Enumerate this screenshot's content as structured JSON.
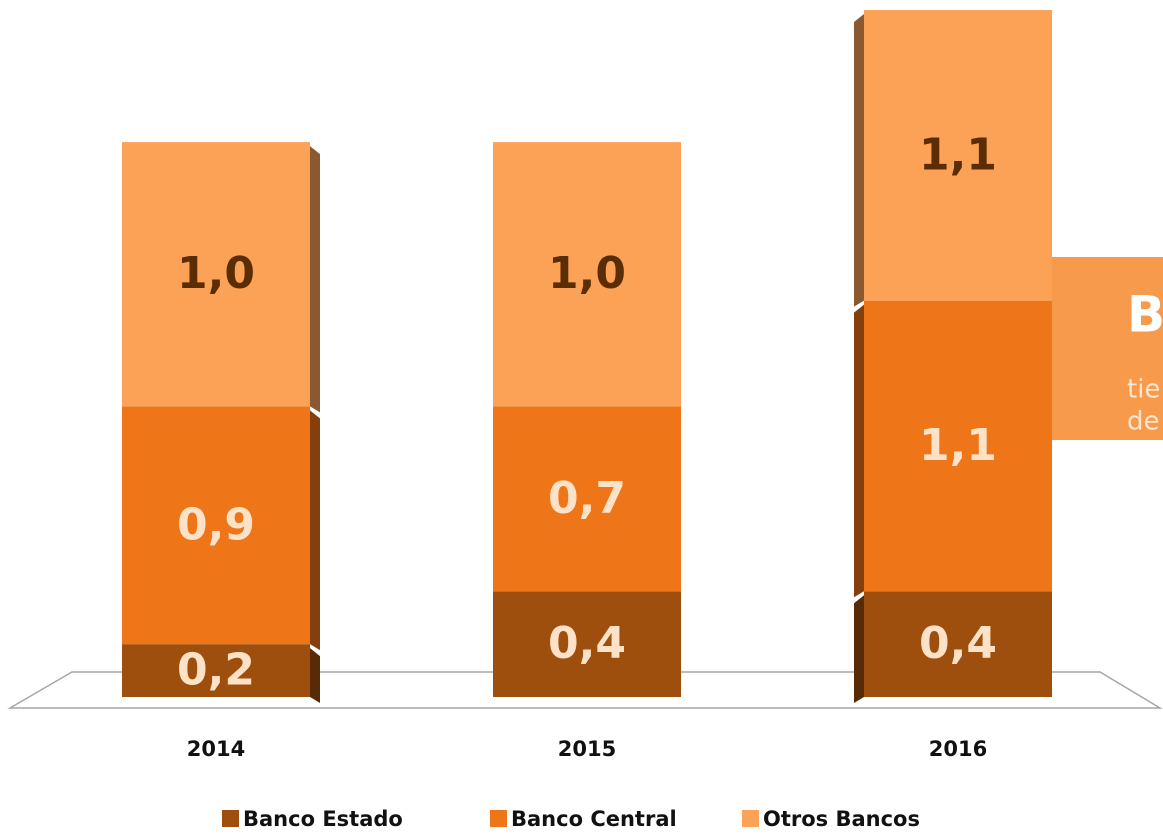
{
  "chart_data": {
    "type": "bar",
    "stacked": true,
    "categories": [
      "2014",
      "2015",
      "2016"
    ],
    "series": [
      {
        "name": "Banco Estado",
        "color": "#9e4f0e",
        "values": [
          0.2,
          0.4,
          0.4
        ],
        "value_labels": [
          "0,2",
          "0,4",
          "0,4"
        ]
      },
      {
        "name": "Banco Central",
        "color": "#ee7518",
        "values": [
          0.9,
          0.7,
          1.1
        ],
        "value_labels": [
          "0,9",
          "0,7",
          "1,1"
        ]
      },
      {
        "name": "Otros Bancos",
        "color": "#fba257",
        "values": [
          1.0,
          1.0,
          1.1
        ],
        "value_labels": [
          "1,0",
          "1,0",
          "1,1"
        ]
      }
    ],
    "ylim": [
      0,
      2.6
    ],
    "callout": {
      "title": "B",
      "lines": [
        "tie",
        "de"
      ]
    }
  }
}
